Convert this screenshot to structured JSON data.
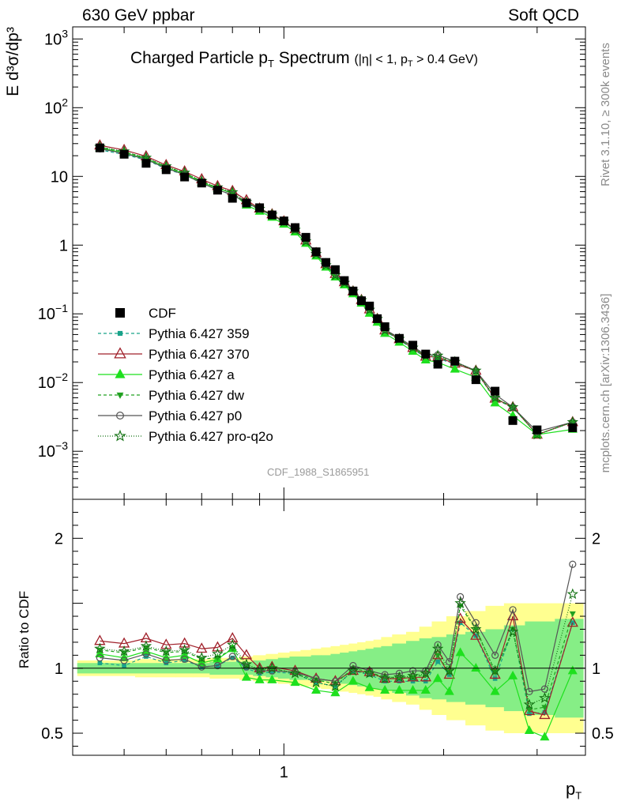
{
  "header": {
    "energy_label": "630 GeV ppbar",
    "process_label": "Soft QCD"
  },
  "side": {
    "rivet_label": "Rivet 3.1.10, ≥ 300k events",
    "source_label": "mcplots.cern.ch [arXiv:1306.3436]"
  },
  "plot": {
    "title_main": "Charged Particle p",
    "title_main_sub": "T",
    "title_main_end": " Spectrum",
    "title_cut": "(|η| < 1, p",
    "title_cut_sub": "T",
    "title_cut_end": " > 0.4 GeV)",
    "ylabel_main": "E d³σ/dp³",
    "ylabel_ratio": "Ratio to CDF",
    "xlabel": "p",
    "xlabel_sub": "T",
    "analysis_id": "CDF_1988_S1865951"
  },
  "chart_data": {
    "type": "scatter",
    "x_scale": "log",
    "main_y_scale": "log",
    "main_ylim": [
      0.0002,
      1500
    ],
    "ratio_ylim": [
      0.33,
      2.3
    ],
    "xlim": [
      0.4,
      3.7
    ],
    "main_y_ticks": [
      {
        "value": 0.001,
        "label": "10",
        "exp": "−3"
      },
      {
        "value": 0.01,
        "label": "10",
        "exp": "−2"
      },
      {
        "value": 0.1,
        "label": "10",
        "exp": "−1"
      },
      {
        "value": 1,
        "label": "1",
        "exp": ""
      },
      {
        "value": 10,
        "label": "10",
        "exp": ""
      },
      {
        "value": 100,
        "label": "10",
        "exp": "2"
      },
      {
        "value": 1000,
        "label": "10",
        "exp": "3"
      }
    ],
    "ratio_y_ticks": [
      {
        "value": 0.5,
        "label": "0.5"
      },
      {
        "value": 1,
        "label": "1"
      },
      {
        "value": 2,
        "label": "2"
      }
    ],
    "x_ticks": [
      {
        "value": 1,
        "label": "1"
      }
    ],
    "x": [
      0.45,
      0.5,
      0.55,
      0.6,
      0.65,
      0.7,
      0.75,
      0.8,
      0.85,
      0.9,
      0.95,
      1.0,
      1.05,
      1.1,
      1.15,
      1.2,
      1.25,
      1.3,
      1.35,
      1.4,
      1.45,
      1.5,
      1.55,
      1.65,
      1.75,
      1.85,
      1.95,
      2.1,
      2.3,
      2.5,
      2.7,
      3.0,
      3.5
    ],
    "data": {
      "name": "CDF",
      "values": [
        26,
        21,
        15.5,
        12.5,
        9.8,
        8.0,
        6.3,
        4.8,
        4.1,
        3.5,
        2.75,
        2.25,
        1.8,
        1.3,
        0.8,
        0.56,
        0.44,
        0.305,
        0.215,
        0.155,
        0.13,
        0.085,
        0.065,
        0.044,
        0.035,
        0.026,
        0.0185,
        0.0205,
        0.011,
        0.0075,
        0.0028,
        0.00205,
        0.0022
      ],
      "ratio_band_inner": [
        0.04,
        0.04,
        0.04,
        0.04,
        0.04,
        0.04,
        0.05,
        0.05,
        0.05,
        0.06,
        0.07,
        0.08,
        0.09,
        0.09,
        0.1,
        0.1,
        0.11,
        0.12,
        0.13,
        0.14,
        0.15,
        0.16,
        0.17,
        0.19,
        0.21,
        0.23,
        0.24,
        0.26,
        0.28,
        0.3,
        0.33,
        0.36,
        0.38
      ],
      "ratio_band_outer": [
        0.06,
        0.06,
        0.07,
        0.07,
        0.07,
        0.07,
        0.08,
        0.08,
        0.09,
        0.1,
        0.11,
        0.12,
        0.13,
        0.14,
        0.15,
        0.16,
        0.17,
        0.18,
        0.19,
        0.2,
        0.21,
        0.22,
        0.24,
        0.26,
        0.28,
        0.32,
        0.36,
        0.4,
        0.44,
        0.48,
        0.5,
        0.5,
        0.5
      ]
    },
    "series": [
      {
        "name": "Pythia 6.427 359",
        "color": "#19a38a",
        "dash": "4,3",
        "marker": "square",
        "ratio": [
          1.04,
          1.02,
          1.09,
          1.04,
          1.06,
          1.01,
          1.02,
          1.08,
          1.0,
          0.96,
          0.97,
          0.96,
          0.89,
          0.86,
          0.98,
          0.95,
          0.9,
          0.9,
          0.9,
          0.9,
          1.05,
          0.95,
          1.35,
          1.25,
          0.92,
          1.3,
          0.65,
          0.66,
          1.35
        ]
      },
      {
        "name": "Pythia 6.427 370",
        "color": "#a0202a",
        "dash": "",
        "marker": "triangle-open",
        "ratio": [
          1.21,
          1.19,
          1.23,
          1.18,
          1.19,
          1.15,
          1.16,
          1.23,
          1.1,
          1.0,
          1.01,
          0.98,
          0.92,
          0.9,
          0.98,
          0.97,
          0.92,
          0.92,
          0.93,
          0.93,
          1.1,
          0.95,
          1.38,
          1.25,
          0.95,
          1.4,
          0.67,
          0.64,
          1.35
        ]
      },
      {
        "name": "Pythia 6.427 a",
        "color": "#1ee01e",
        "dash": "",
        "marker": "triangle",
        "ratio": [
          1.11,
          1.08,
          1.13,
          1.08,
          1.1,
          1.04,
          1.07,
          1.15,
          0.93,
          0.91,
          0.91,
          0.89,
          0.83,
          0.81,
          0.9,
          0.85,
          0.83,
          0.83,
          0.83,
          0.83,
          0.92,
          0.82,
          1.12,
          1.0,
          0.82,
          0.94,
          0.52,
          0.47,
          0.98
        ]
      },
      {
        "name": "Pythia 6.427 dw",
        "color": "#20a020",
        "dash": "4,3",
        "marker": "triangle-down",
        "ratio": [
          1.14,
          1.12,
          1.16,
          1.12,
          1.13,
          1.07,
          1.08,
          1.15,
          1.02,
          0.98,
          1.0,
          0.96,
          0.91,
          0.88,
          1.0,
          0.97,
          0.93,
          0.93,
          0.93,
          0.95,
          1.1,
          0.97,
          1.48,
          1.3,
          0.97,
          1.3,
          0.68,
          0.7,
          1.42
        ]
      },
      {
        "name": "Pythia 6.427 p0",
        "color": "#555555",
        "dash": "",
        "marker": "circle-open",
        "ratio": [
          1.08,
          1.06,
          1.11,
          1.06,
          1.07,
          1.01,
          1.02,
          1.09,
          1.01,
          0.98,
          0.98,
          0.97,
          0.92,
          0.9,
          1.02,
          0.98,
          0.95,
          0.96,
          0.98,
          0.98,
          1.18,
          1.05,
          1.55,
          1.35,
          1.1,
          1.45,
          0.82,
          0.84,
          1.8
        ]
      },
      {
        "name": "Pythia 6.427 pro-q2o",
        "color": "#107010",
        "dash": "1,2",
        "marker": "star-open",
        "ratio": [
          1.15,
          1.13,
          1.17,
          1.13,
          1.14,
          1.08,
          1.11,
          1.18,
          1.03,
          0.99,
          1.0,
          0.96,
          0.89,
          0.86,
          0.98,
          0.96,
          0.92,
          0.93,
          0.94,
          0.96,
          1.15,
          0.98,
          1.5,
          1.3,
          0.98,
          1.28,
          0.72,
          0.77,
          1.57
        ]
      }
    ],
    "ratio_x": [
      0.45,
      0.5,
      0.55,
      0.6,
      0.65,
      0.7,
      0.75,
      0.8,
      0.85,
      0.9,
      0.95,
      1.05,
      1.15,
      1.25,
      1.35,
      1.45,
      1.55,
      1.65,
      1.75,
      1.85,
      1.95,
      2.05,
      2.15,
      2.3,
      2.5,
      2.7,
      2.9,
      3.1,
      3.5
    ]
  }
}
